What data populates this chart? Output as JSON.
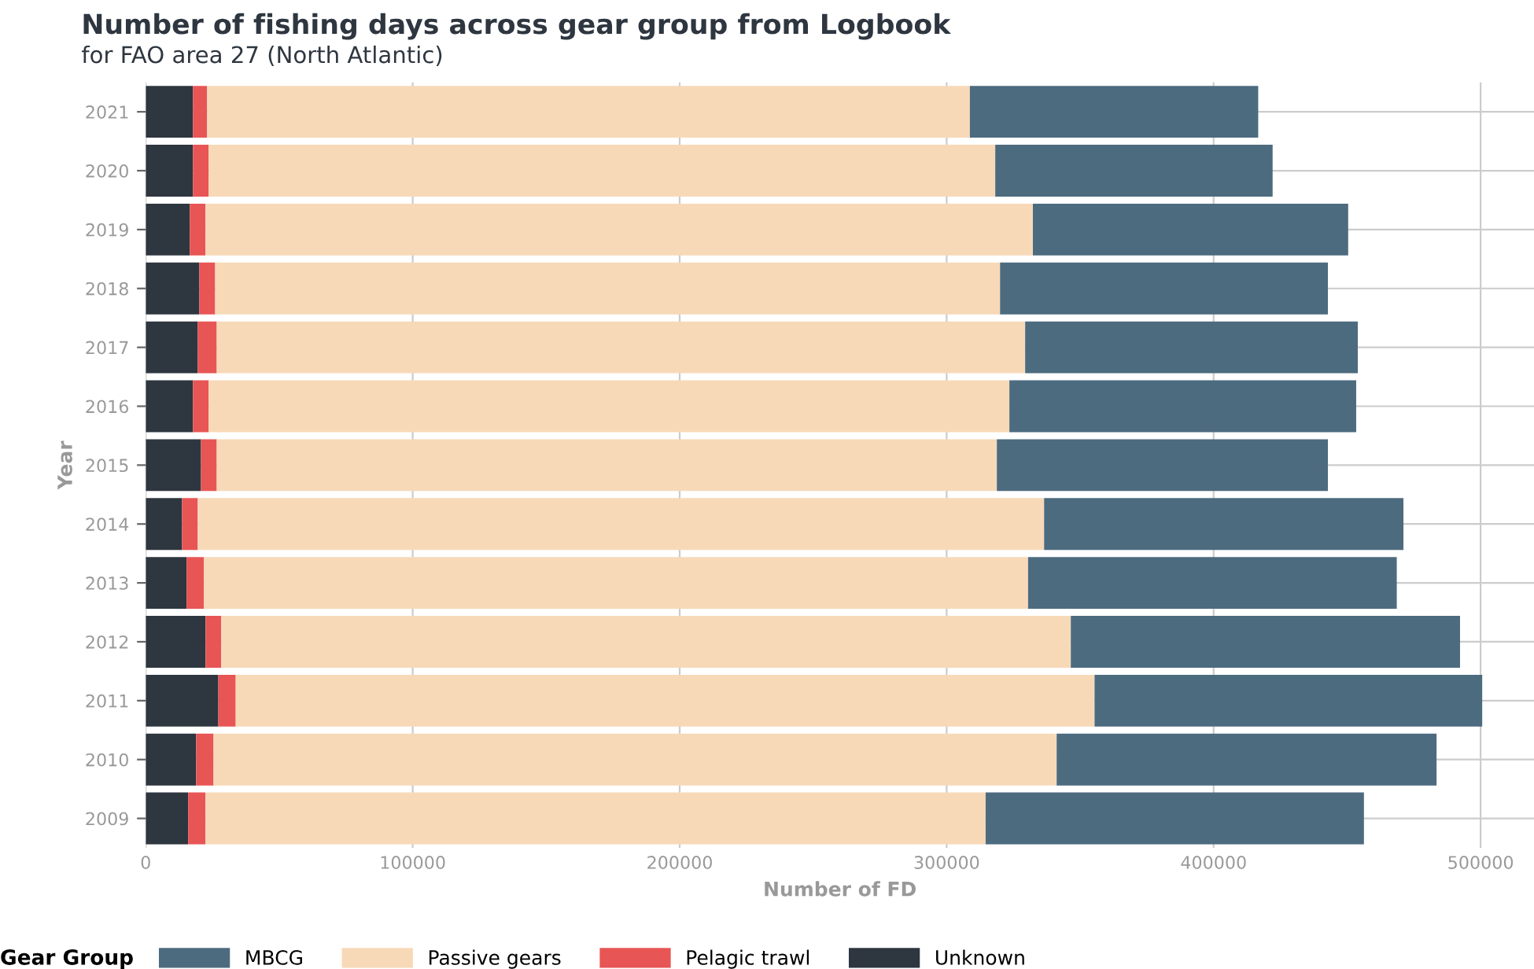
{
  "chart_data": {
    "type": "bar",
    "orientation": "horizontal",
    "stacked": true,
    "title": "Number of fishing days across gear group from Logbook",
    "subtitle": "for FAO area 27 (North Atlantic)",
    "xlabel": "Number of FD",
    "ylabel": "Year",
    "legend_title": "Gear Group",
    "legend": "bottom",
    "grid": true,
    "categories": [
      "2021",
      "2020",
      "2019",
      "2018",
      "2017",
      "2016",
      "2015",
      "2014",
      "2013",
      "2012",
      "2011",
      "2010",
      "2009"
    ],
    "xlim": [
      0,
      520000
    ],
    "xticks": [
      0,
      100000,
      200000,
      300000,
      400000,
      500000
    ],
    "series": [
      {
        "name": "Unknown",
        "color": "#2e3640",
        "values": [
          17700,
          17700,
          16500,
          20100,
          19500,
          17700,
          20700,
          13600,
          15300,
          22400,
          27200,
          18900,
          15900
        ]
      },
      {
        "name": "Pelagic trawl",
        "color": "#e85555",
        "values": [
          5300,
          5900,
          5900,
          5900,
          7100,
          5900,
          5900,
          5900,
          6500,
          5900,
          6500,
          6500,
          6500
        ]
      },
      {
        "name": "Passive gears",
        "color": "#f7d9b8",
        "values": [
          285700,
          294600,
          309900,
          294000,
          302800,
          299900,
          292200,
          317000,
          308700,
          318200,
          321700,
          315800,
          292200
        ]
      },
      {
        "name": "MBCG",
        "color": "#4d6b7f",
        "values": [
          108000,
          103900,
          118100,
          122800,
          124600,
          129900,
          124000,
          134600,
          138100,
          145800,
          145200,
          142300,
          141700
        ]
      }
    ]
  }
}
